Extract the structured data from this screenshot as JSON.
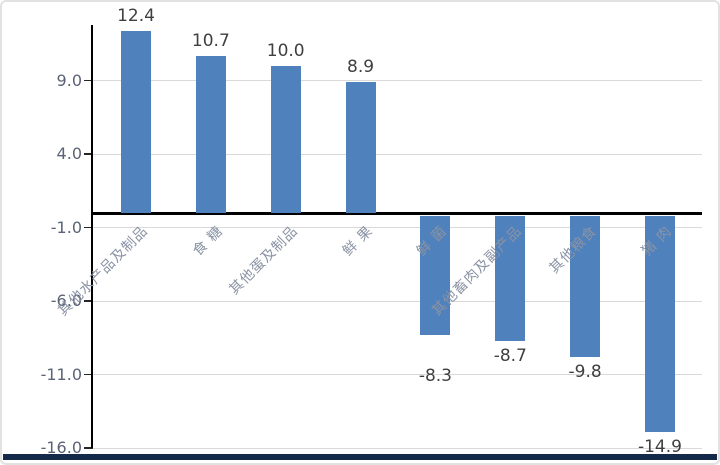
{
  "chart_data": {
    "type": "bar",
    "categories": [
      "其他水产品及制品",
      "食 糖",
      "其他蛋及制品",
      "鲜 果",
      "鲜 菌",
      "其他畜肉及副产品",
      "其他粮食",
      "猪 肉"
    ],
    "values": [
      12.4,
      10.7,
      10.0,
      8.9,
      -8.3,
      -8.7,
      -9.8,
      -14.9
    ],
    "value_labels": [
      "12.4",
      "10.7",
      "10.0",
      "8.9",
      "-8.3",
      "-8.7",
      "-9.8",
      "-14.9"
    ],
    "title": "",
    "xlabel": "",
    "ylabel": "",
    "yticks": [
      9.0,
      4.0,
      -1.0,
      -6.0,
      -11.0,
      -16.0
    ],
    "ytick_labels": [
      "9.0",
      "4.0",
      "-1.0",
      "-6.0",
      "-11.0",
      "-16.0"
    ],
    "ylim": [
      -16.0,
      13.5
    ],
    "grid": true,
    "legend": null,
    "bar_orientation": "vertical",
    "category_label_rotation_deg": 45,
    "colors": {
      "bar": "#4f81bd",
      "gridline": "#d9d9d9",
      "axis_line": "#000000",
      "zero_line": "#000000",
      "value_label": "#3f3f3f",
      "axis_tick_label": "#5a6375",
      "category_label": "#8a93a4",
      "bottom_accent_bar": "#15294b",
      "frame_border": "#e2e2e2",
      "background": "#ffffff"
    }
  }
}
